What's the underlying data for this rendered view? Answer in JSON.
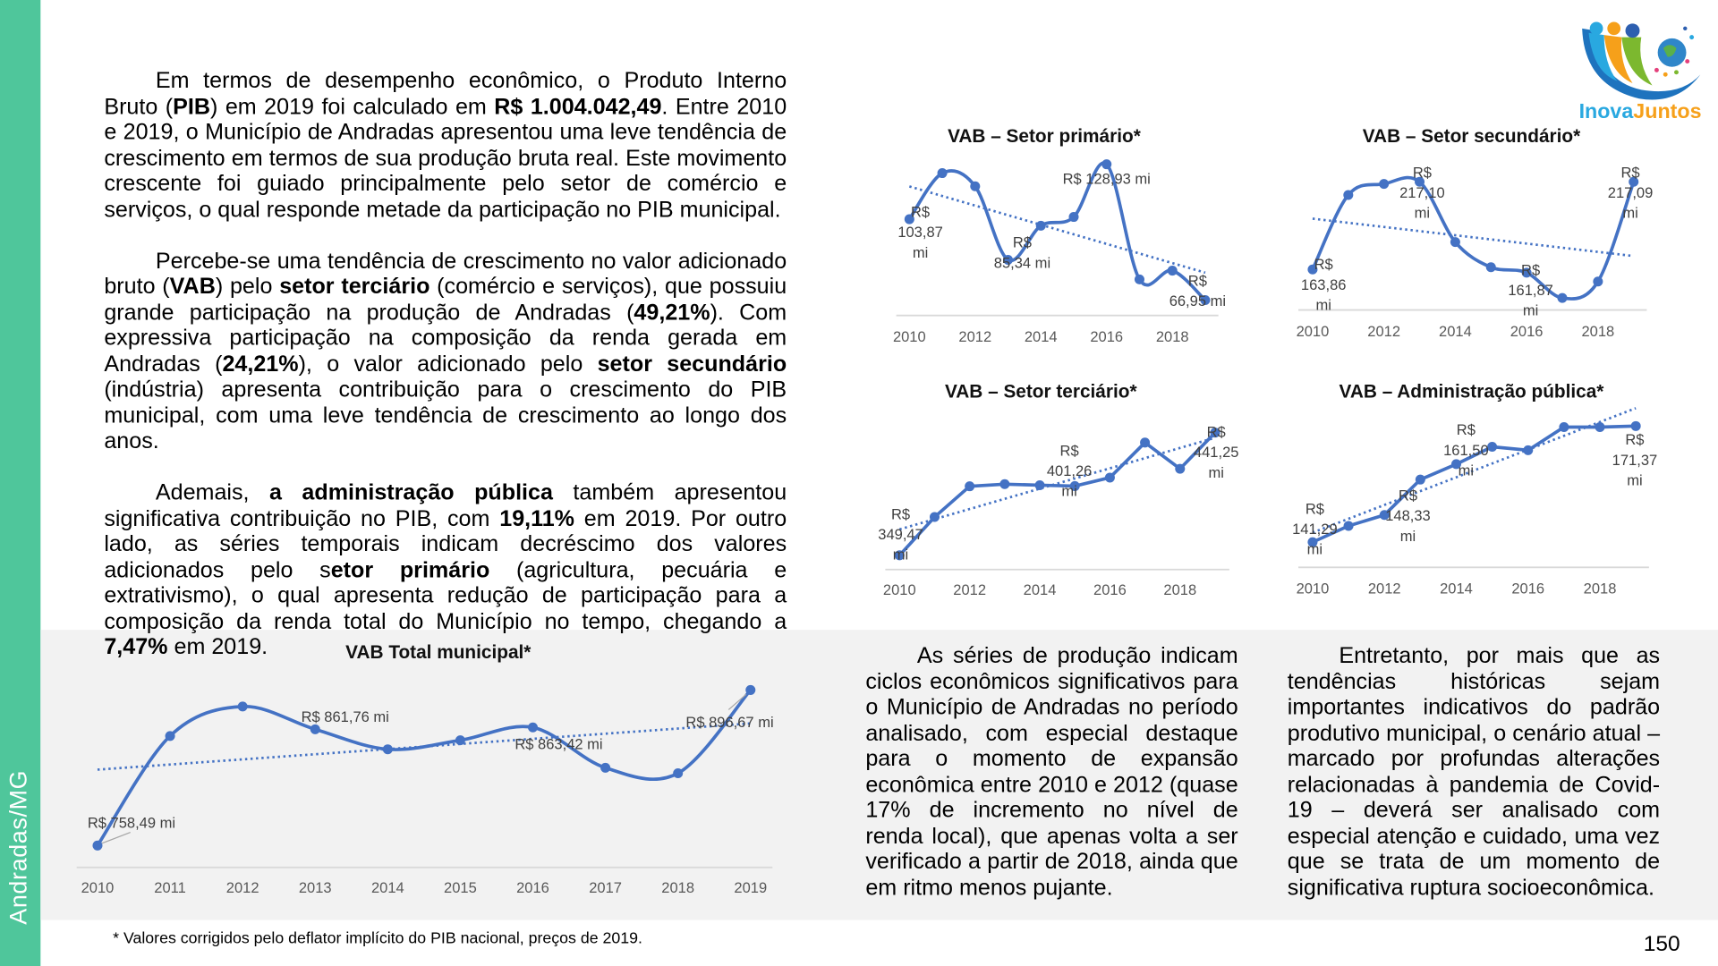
{
  "sidebar": {
    "label": "Andradas/MG",
    "color": "#4fc69b"
  },
  "logo": {
    "text_part1": "Inova",
    "text_part2": "Juntos"
  },
  "main_text": {
    "paragraphs": [
      [
        {
          "t": "Em termos de desempenho econômico, o Produto Interno Bruto ("
        },
        {
          "t": "PIB",
          "b": true
        },
        {
          "t": ") em 2019 foi calculado em "
        },
        {
          "t": "R$ 1.004.042,49",
          "b": true
        },
        {
          "t": ". Entre 2010 e 2019, o Município de Andradas apresentou uma leve tendência de crescimento em termos de sua produção bruta real. Este movimento crescente foi guiado principalmente pelo setor de comércio e serviços, o qual responde metade da participação no PIB municipal."
        }
      ],
      [
        {
          "t": "Percebe-se uma tendência de crescimento no valor adicionado bruto ("
        },
        {
          "t": "VAB",
          "b": true
        },
        {
          "t": ") pelo "
        },
        {
          "t": "setor terciário",
          "b": true
        },
        {
          "t": " (comércio e serviços), que possuiu grande participação na produção de Andradas ("
        },
        {
          "t": "49,21%",
          "b": true
        },
        {
          "t": "). Com expressiva participação na composição da renda gerada em Andradas ("
        },
        {
          "t": "24,21%",
          "b": true
        },
        {
          "t": "), o valor adicionado pelo "
        },
        {
          "t": "setor secundário",
          "b": true
        },
        {
          "t": " (indústria) apresenta contribuição para o crescimento do PIB municipal, com uma leve tendência de crescimento ao longo dos anos."
        }
      ],
      [
        {
          "t": "Ademais, "
        },
        {
          "t": "a administração pública",
          "b": true
        },
        {
          "t": " também apresentou significativa contribuição no PIB, com "
        },
        {
          "t": "19,11%",
          "b": true
        },
        {
          "t": " em 2019. Por outro lado, as séries temporais indicam decréscimo dos valores adicionados pelo s"
        },
        {
          "t": "etor primário",
          "b": true
        },
        {
          "t": " (agricultura, pecuária e extrativismo), o qual apresenta redução de participação para a composição da renda total do Município no tempo, chegando a "
        },
        {
          "t": "7,47%",
          "b": true
        },
        {
          "t": " em 2019."
        }
      ]
    ]
  },
  "bottom_text": {
    "col1": "As séries de produção indicam ciclos econômicos significativos para o Município de Andradas no período analisado, com especial destaque para o momento de expansão econômica entre 2010 e 2012 (quase 17% de incremento no nível de renda local), que apenas volta a ser verificado a partir de 2018, ainda que em ritmo menos pujante.",
    "col2": "Entretanto, por mais que as tendências históricas sejam importantes indicativos do padrão produtivo municipal, o cenário atual – marcado por profundas alterações relacionadas à pandemia de Covid-19 – deverá ser analisado com especial atenção e cuidado, uma vez que se trata de um momento de significativa ruptura socioeconômica."
  },
  "footnote": "* Valores corrigidos pelo deflator implícito do PIB nacional, preços de 2019.",
  "page_number": "150",
  "colors": {
    "line": "#4472c4",
    "trend": "#4472c4",
    "axis": "#d9d9d9",
    "band": "#f2f2f2"
  },
  "chart_data": [
    {
      "id": "primario",
      "type": "line",
      "title": "VAB – Setor primário*",
      "x": [
        2010,
        2011,
        2012,
        2013,
        2014,
        2015,
        2016,
        2017,
        2018,
        2019
      ],
      "values": [
        103.87,
        124.9,
        118.9,
        85.34,
        100.9,
        104.9,
        128.93,
        76.4,
        80.4,
        66.95
      ],
      "tick_labels": [
        "2010",
        "2012",
        "2014",
        "2016",
        "2018"
      ],
      "trendline": "linear",
      "smooth": true,
      "data_labels": [
        {
          "i": 0,
          "text": "R$ 103,87 mi"
        },
        {
          "i": 3,
          "text": "R$ 85,34 mi"
        },
        {
          "i": 6,
          "text": "R$ 128,93 mi"
        },
        {
          "i": 9,
          "text": "R$ 66,95 mi"
        }
      ]
    },
    {
      "id": "secundario",
      "type": "line",
      "title": "VAB – Setor secundário*",
      "x": [
        2010,
        2011,
        2012,
        2013,
        2014,
        2015,
        2016,
        2017,
        2018,
        2019
      ],
      "values": [
        163.86,
        209.1,
        215.8,
        217.1,
        180.5,
        165.2,
        161.87,
        146.5,
        156.5,
        217.09
      ],
      "tick_labels": [
        "2010",
        "2012",
        "2014",
        "2016",
        "2018"
      ],
      "trendline": "linear",
      "smooth": true,
      "data_labels": [
        {
          "i": 0,
          "text": "R$ 163,86 mi"
        },
        {
          "i": 3,
          "text": "R$ 217,10 mi"
        },
        {
          "i": 6,
          "text": "R$ 161,87 mi"
        },
        {
          "i": 9,
          "text": "R$ 217,09 mi"
        }
      ]
    },
    {
      "id": "terciario",
      "type": "line",
      "title": "VAB – Setor terciário*",
      "x": [
        2010,
        2011,
        2012,
        2013,
        2014,
        2015,
        2016,
        2017,
        2018,
        2019
      ],
      "values": [
        349.47,
        378.1,
        401.1,
        402.7,
        401.9,
        401.26,
        407.6,
        433.8,
        414.2,
        441.25
      ],
      "tick_labels": [
        "2010",
        "2012",
        "2014",
        "2016",
        "2018"
      ],
      "trendline": "linear",
      "smooth": false,
      "data_labels": [
        {
          "i": 0,
          "text": "R$ 349,47 mi"
        },
        {
          "i": 5,
          "text": "R$ 401,26 mi"
        },
        {
          "i": 9,
          "text": "R$ 441,25 mi"
        }
      ]
    },
    {
      "id": "administracao",
      "type": "line",
      "title": "VAB – Administração pública*",
      "x": [
        2010,
        2011,
        2012,
        2013,
        2014,
        2015,
        2016,
        2017,
        2018,
        2019
      ],
      "values": [
        141.29,
        145.5,
        148.33,
        157.5,
        161.5,
        166.0,
        165.1,
        171.1,
        171.1,
        171.37
      ],
      "tick_labels": [
        "2010",
        "2012",
        "2014",
        "2016",
        "2018"
      ],
      "trendline": "linear",
      "smooth": false,
      "data_labels": [
        {
          "i": 0,
          "text": "R$ 141,29 mi"
        },
        {
          "i": 2,
          "text": "R$ 148,33 mi"
        },
        {
          "i": 4,
          "text": "R$ 161,50 mi"
        },
        {
          "i": 9,
          "text": "R$ 171,37 mi"
        }
      ]
    },
    {
      "id": "total",
      "type": "line",
      "title": "VAB Total municipal*",
      "x": [
        2010,
        2011,
        2012,
        2013,
        2014,
        2015,
        2016,
        2017,
        2018,
        2019
      ],
      "values": [
        758.49,
        855.8,
        882.0,
        861.76,
        844.0,
        852.0,
        863.42,
        827.6,
        822.7,
        896.67
      ],
      "tick_labels": [
        "2010",
        "2011",
        "2012",
        "2013",
        "2014",
        "2015",
        "2016",
        "2017",
        "2018",
        "2019"
      ],
      "trendline": "linear",
      "smooth": true,
      "data_labels": [
        {
          "i": 0,
          "text": "R$ 758,49 mi"
        },
        {
          "i": 3,
          "text": "R$ 861,76 mi"
        },
        {
          "i": 6,
          "text": "R$ 863,42 mi"
        },
        {
          "i": 9,
          "text": "R$ 896,67 mi"
        }
      ]
    }
  ]
}
